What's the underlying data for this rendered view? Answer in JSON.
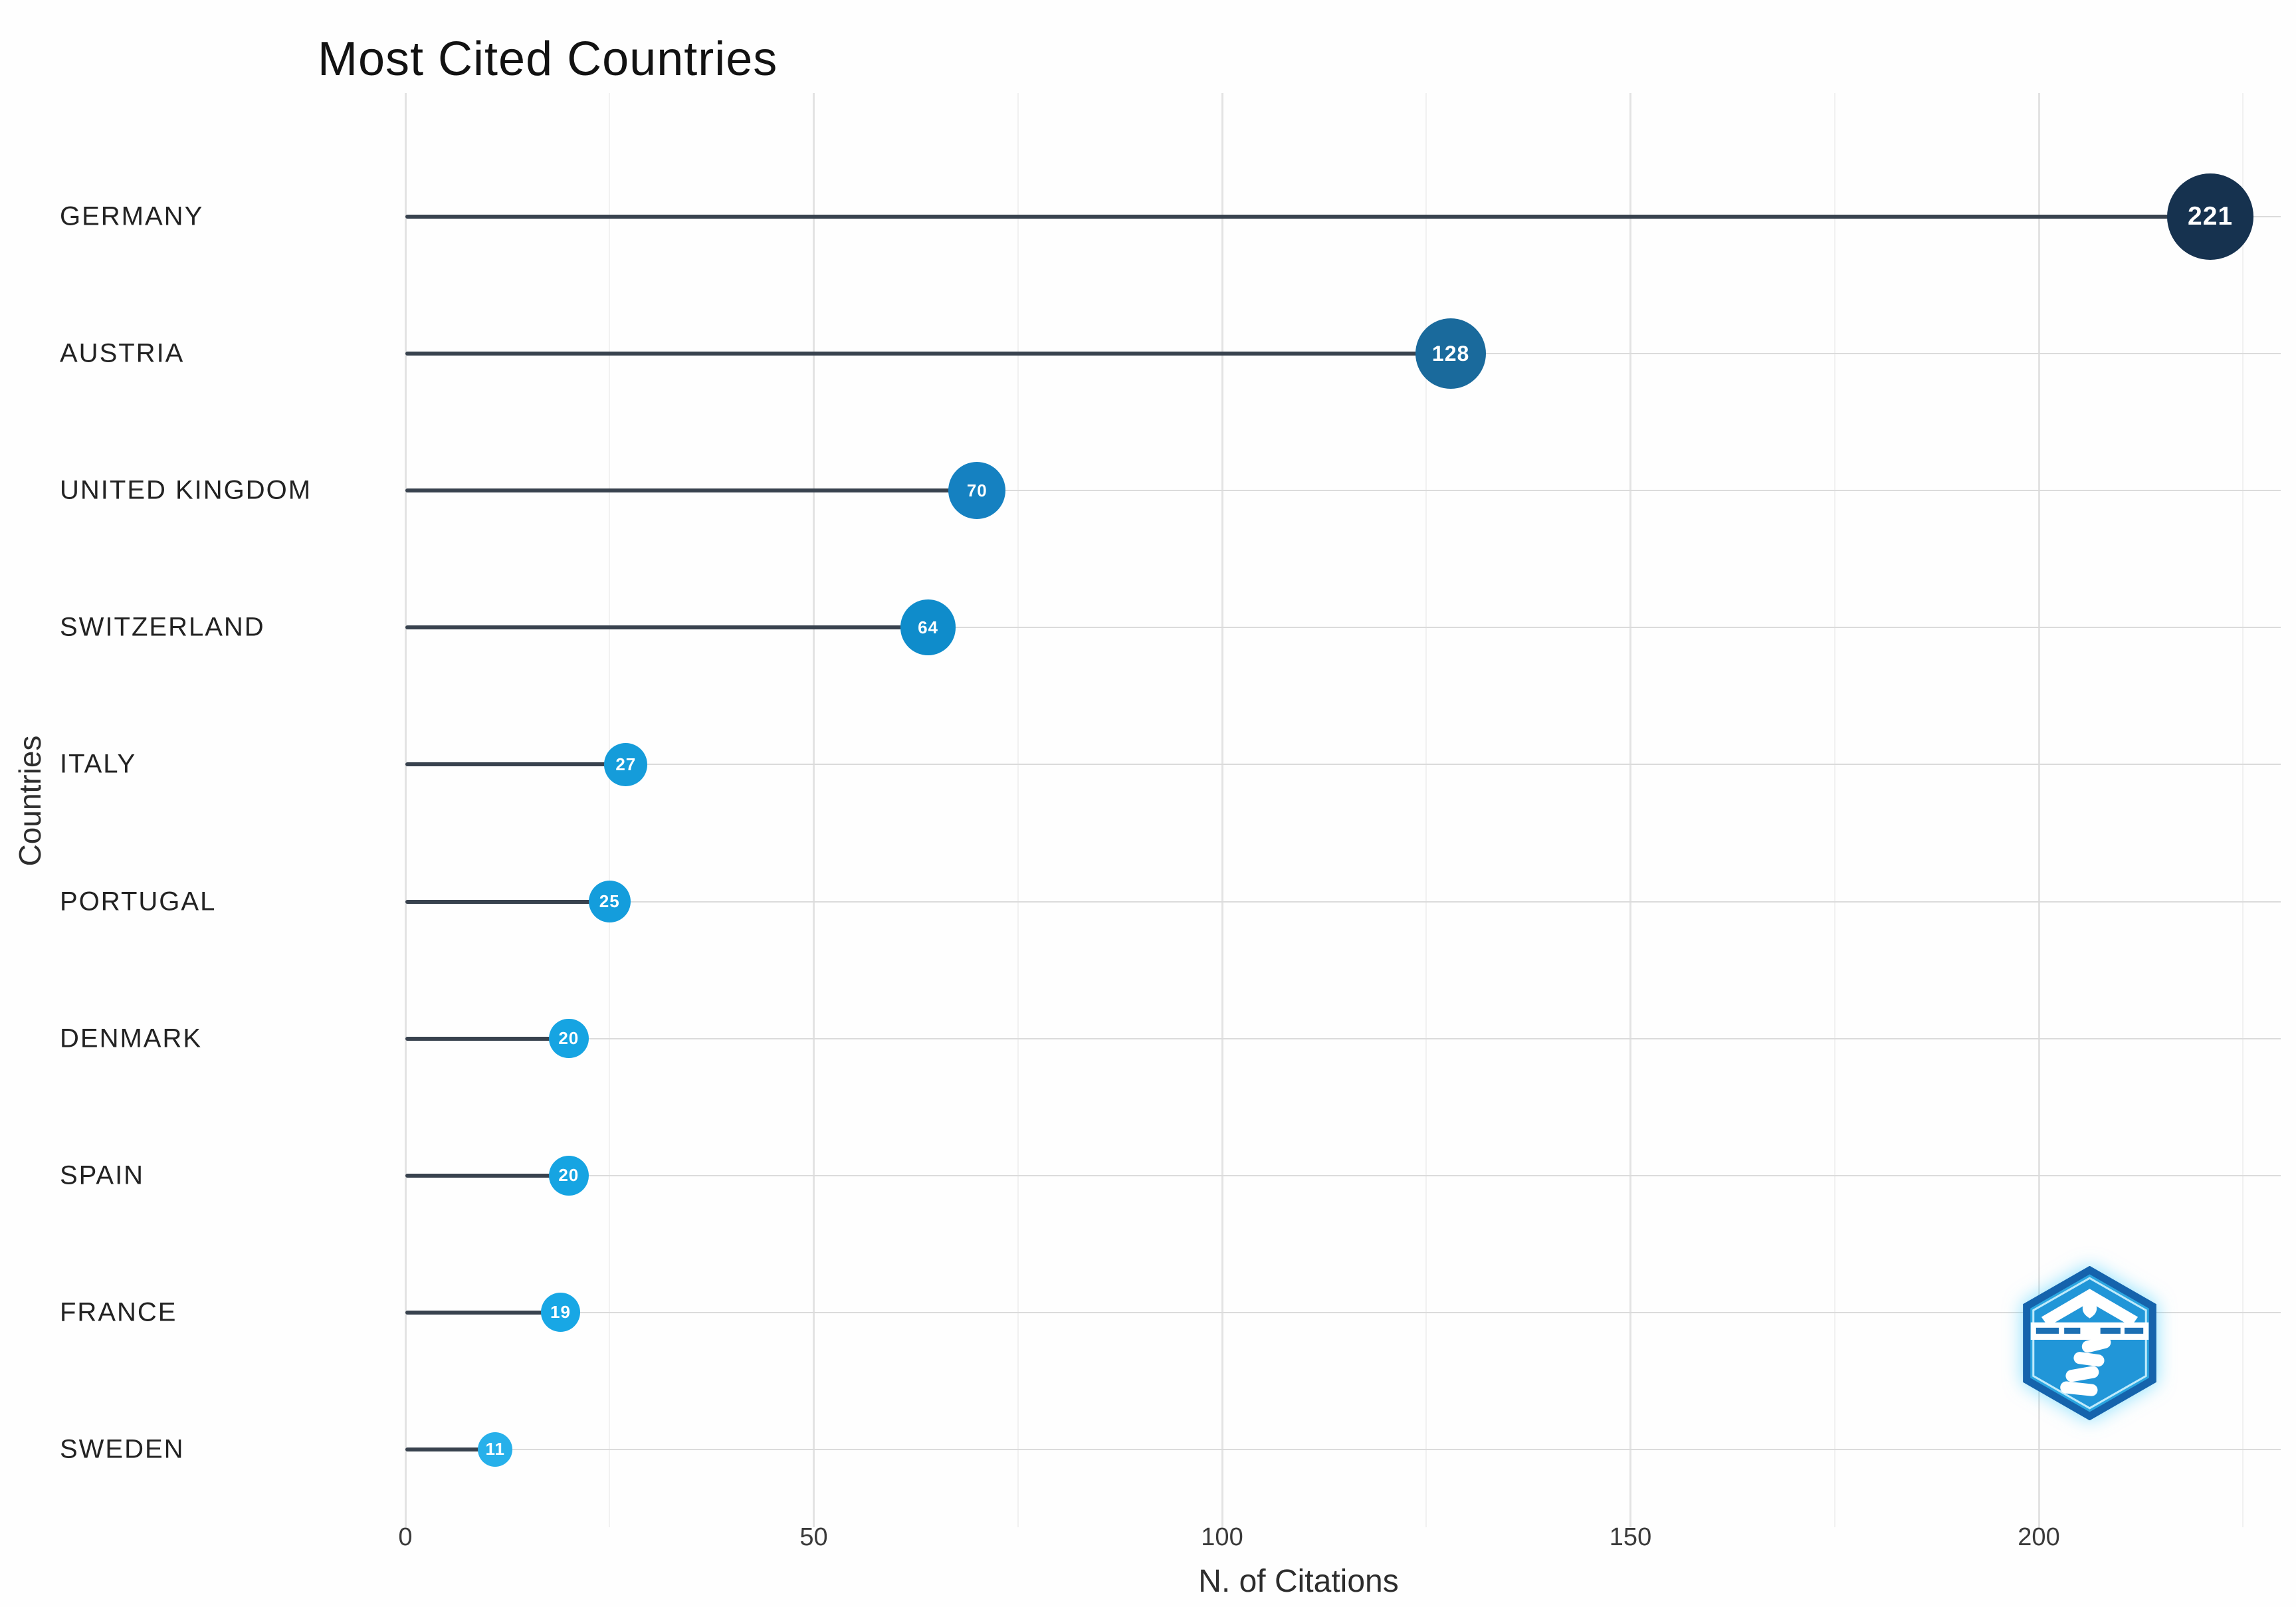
{
  "figure": {
    "title": "Most Cited Countries"
  },
  "chart_data": {
    "type": "bar",
    "variant": "horizontal-lollipop",
    "title": "Most Cited Countries",
    "xlabel": "N. of Citations",
    "ylabel": "Countries",
    "categories": [
      "GERMANY",
      "AUSTRIA",
      "UNITED KINGDOM",
      "SWITZERLAND",
      "ITALY",
      "PORTUGAL",
      "DENMARK",
      "SPAIN",
      "FRANCE",
      "SWEDEN"
    ],
    "values": [
      221,
      128,
      70,
      64,
      27,
      25,
      20,
      20,
      19,
      11
    ],
    "point_labels": [
      "221",
      "128",
      "70",
      "64",
      "27",
      "25",
      "20",
      "20",
      "19",
      "11"
    ],
    "point_colors": [
      "#16324f",
      "#1a6a9c",
      "#1581c1",
      "#0f8ccb",
      "#159cda",
      "#149ddc",
      "#16a4e2",
      "#16a4e2",
      "#18a7e5",
      "#27b0ea"
    ],
    "xticks": [
      0,
      50,
      100,
      150,
      200
    ],
    "xlim": [
      0,
      228
    ],
    "grid": "on",
    "legend": "none",
    "stem_color": "#38424e",
    "background_color": "#fefefe",
    "watermark": "hexagon-logo"
  }
}
